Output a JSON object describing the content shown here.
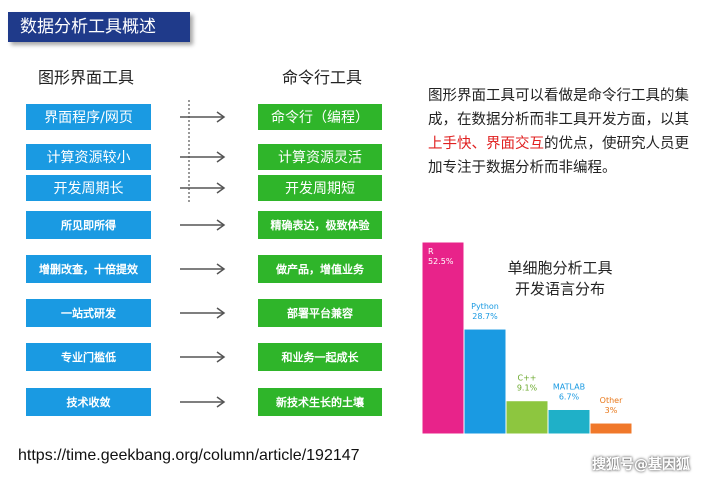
{
  "header": {
    "title": "数据分析工具概述"
  },
  "columns": {
    "left": "图形界面工具",
    "right": "命令行工具"
  },
  "comparisons": [
    {
      "left": "界面程序/网页",
      "right": "命令行（编程）"
    },
    {
      "left": "计算资源较小",
      "right": "计算资源灵活"
    },
    {
      "left": "开发周期长",
      "right": "开发周期短"
    },
    {
      "left": "所见即所得",
      "right": "精确表达，极致体验"
    },
    {
      "left": "增删改查，十倍提效",
      "right": "做产品，增值业务"
    },
    {
      "left": "一站式研发",
      "right": "部署平台兼容"
    },
    {
      "left": "专业门槛低",
      "right": "和业务一起成长"
    },
    {
      "left": "技术收敛",
      "right": "新技术生长的土壤"
    }
  ],
  "description": {
    "part1": "图形界面工具可以看做是命令行工具的集成，在数据分析而非工具开发方面，以其",
    "highlight": "上手快、界面交互",
    "part2": "的优点，使研究人员更加专注于数据分析而非编程。"
  },
  "chart_data": {
    "type": "bar",
    "title": "单细胞分析工具\n开发语言分布",
    "categories": [
      "R",
      "Python",
      "C++",
      "MATLAB",
      "Other"
    ],
    "values": [
      52.5,
      28.7,
      9.1,
      6.7,
      3
    ],
    "labels": [
      "52.5%",
      "28.7%",
      "9.1%",
      "6.7%",
      "3%"
    ],
    "bar_colors": [
      "#e8238a",
      "#1a9ae2",
      "#8dc63f",
      "#1fb0c8",
      "#f0782a"
    ],
    "label_colors": [
      "#ffffff",
      "#1a9ae2",
      "#6aa82a",
      "#1a9ae2",
      "#e8781a"
    ]
  },
  "footer": {
    "url": "https://time.geekbang.org/column/article/192147"
  },
  "watermark": "搜狐号@基因狐"
}
